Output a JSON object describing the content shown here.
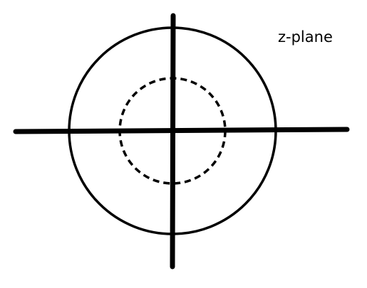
{
  "diagram": {
    "label": "z-plane",
    "colors": {
      "stroke": "#000000",
      "background": "#ffffff"
    },
    "elements": [
      "unit-circle",
      "inner-dashed-circle",
      "real-axis",
      "imaginary-axis"
    ]
  }
}
